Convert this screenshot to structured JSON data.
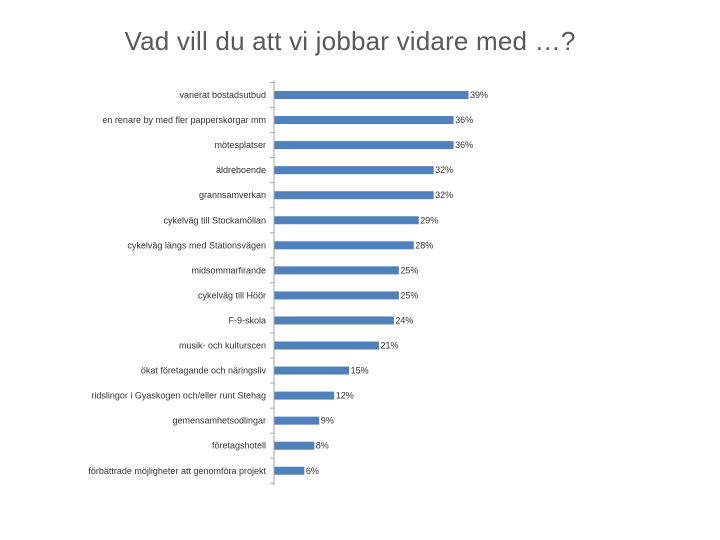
{
  "title": "Vad vill du att vi jobbar vidare med …?",
  "colors": {
    "bar": "#4f81bd",
    "axis": "#a6a6a6",
    "title": "#595959"
  },
  "chart_data": {
    "type": "bar",
    "orientation": "horizontal",
    "title": "Vad vill du att vi jobbar vidare med …?",
    "xlabel": "",
    "ylabel": "",
    "xlim": [
      0,
      40
    ],
    "grid": false,
    "legend": "none",
    "categories": [
      "varierat bostadsutbud",
      "en renare by med fler papperskorgar mm",
      "mötesplatser",
      "äldreboende",
      "grannsamverkan",
      "cykelväg till Stockamöllan",
      "cykelväg längs med Stationsvägen",
      "midsommarfirande",
      "cykelväg till Höör",
      "F-9-skola",
      "musik- och kulturscen",
      "ökat företagande och näringsliv",
      "ridslingor i Gyaskogen och/eller runt Stehag",
      "gemensamhetsodlingar",
      "företagshotell",
      "förbättrade möjligheter att genomföra projekt"
    ],
    "values": [
      39,
      36,
      36,
      32,
      32,
      29,
      28,
      25,
      25,
      24,
      21,
      15,
      12,
      9,
      8,
      6
    ],
    "value_labels": [
      "39%",
      "36%",
      "36%",
      "32%",
      "32%",
      "29%",
      "28%",
      "25%",
      "25%",
      "24%",
      "21%",
      "15%",
      "12%",
      "9%",
      "8%",
      "6%"
    ]
  }
}
